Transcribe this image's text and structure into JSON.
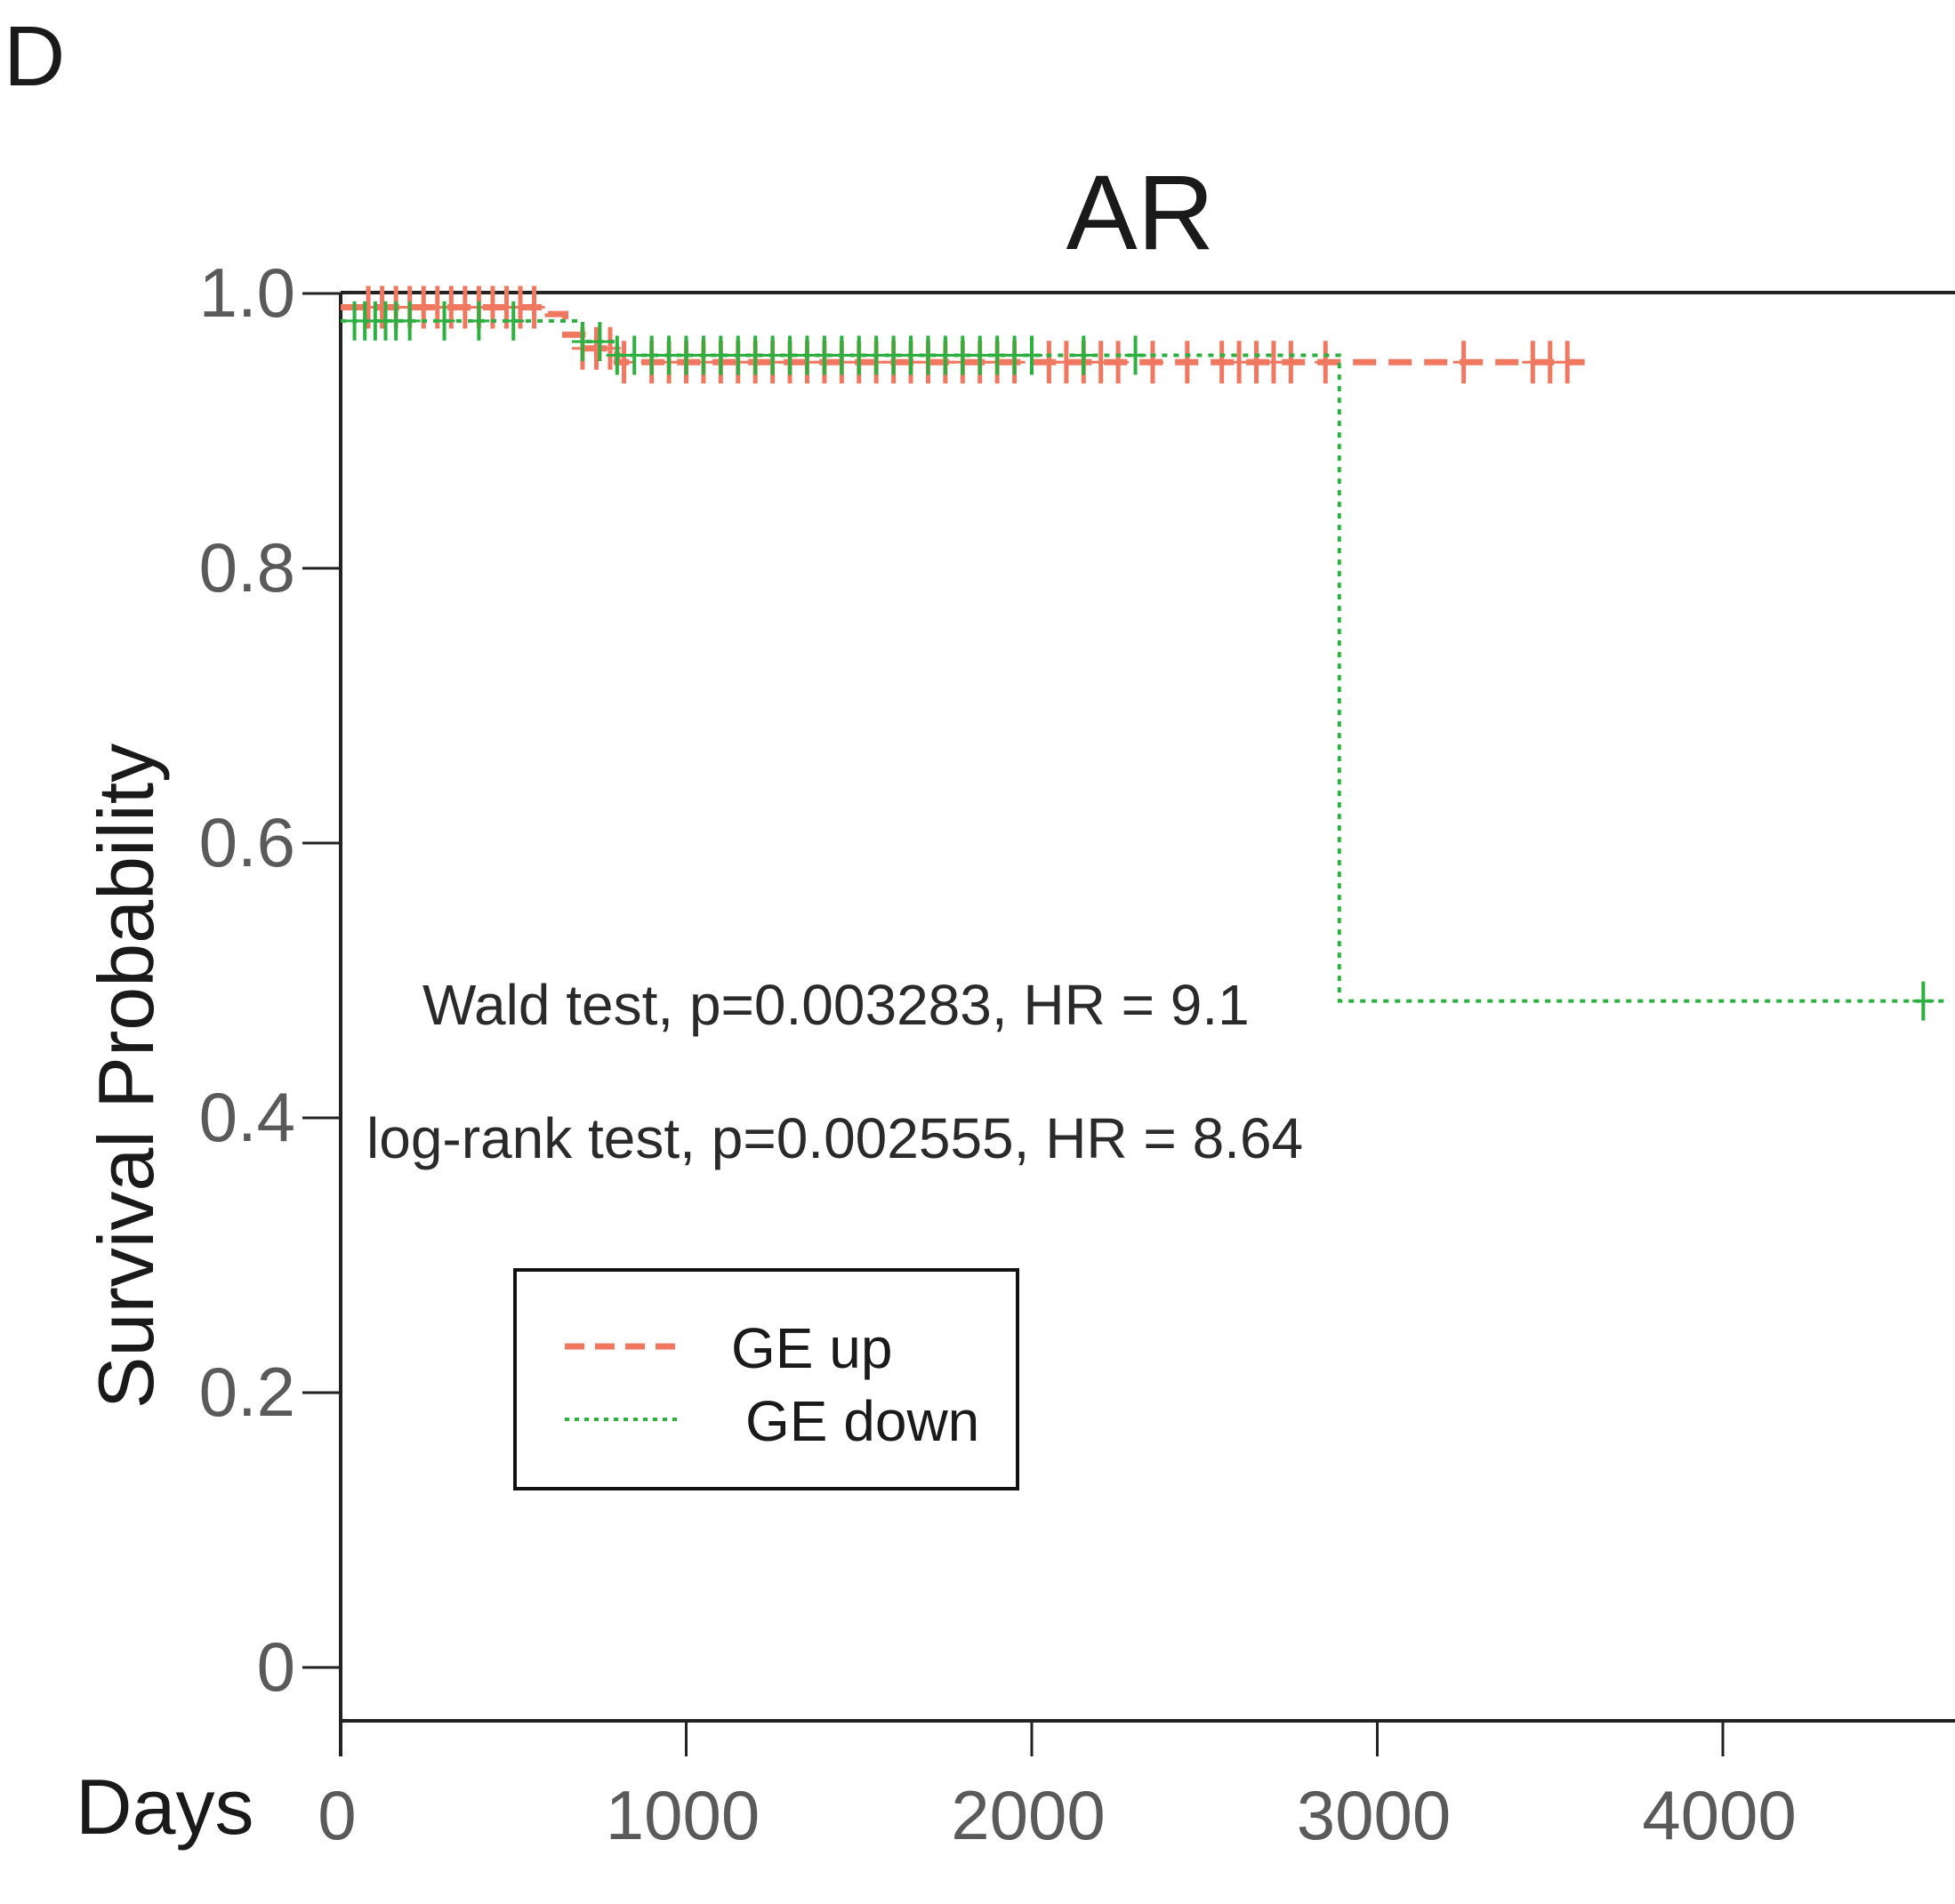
{
  "panel_letter": "D",
  "chart_data": {
    "type": "line",
    "title": "AR",
    "xlabel": "Days",
    "ylabel": "Survival Probability",
    "xlim": [
      0,
      4650
    ],
    "ylim": [
      0,
      1.0
    ],
    "x_ticks": [
      "0",
      "1000",
      "2000",
      "3000",
      "4000"
    ],
    "y_ticks": [
      "0",
      "0.2",
      "0.4",
      "0.6",
      "0.8",
      "1.0"
    ],
    "grid": false,
    "legend": "lower-left",
    "annotations": [
      "Wald test, p=0.003283, HR = 9.1",
      "log-rank test, p=0.002555, HR = 8.64"
    ],
    "series": [
      {
        "name": "GE up",
        "color": "#f07860",
        "style": "dashed",
        "steps": [
          [
            0,
            0.99
          ],
          [
            100,
            0.99
          ],
          [
            600,
            0.985
          ],
          [
            650,
            0.97
          ],
          [
            700,
            0.96
          ],
          [
            800,
            0.95
          ],
          [
            3600,
            0.95
          ]
        ],
        "censor_x": [
          80,
          120,
          160,
          200,
          240,
          280,
          320,
          360,
          400,
          440,
          480,
          520,
          560,
          700,
          740,
          780,
          820,
          900,
          950,
          1000,
          1050,
          1100,
          1150,
          1200,
          1250,
          1300,
          1350,
          1400,
          1450,
          1500,
          1550,
          1600,
          1650,
          1700,
          1750,
          1800,
          1850,
          1900,
          1950,
          2050,
          2100,
          2150,
          2200,
          2250,
          2350,
          2450,
          2550,
          2600,
          2650,
          2700,
          2750,
          2850,
          3250,
          3450,
          3500,
          3550
        ]
      },
      {
        "name": "GE down",
        "color": "#2db040",
        "style": "dotted",
        "steps": [
          [
            0,
            0.98
          ],
          [
            650,
            0.98
          ],
          [
            700,
            0.965
          ],
          [
            800,
            0.955
          ],
          [
            2890,
            0.955
          ],
          [
            2890,
            0.485
          ],
          [
            4650,
            0.485
          ]
        ],
        "censor_x": [
          40,
          70,
          100,
          130,
          160,
          200,
          300,
          400,
          500,
          700,
          750,
          800,
          850,
          900,
          950,
          1000,
          1050,
          1100,
          1150,
          1200,
          1250,
          1300,
          1350,
          1400,
          1450,
          1500,
          1550,
          1600,
          1650,
          1700,
          1750,
          1800,
          1850,
          1900,
          1950,
          2000,
          2150,
          2300,
          4580
        ]
      }
    ]
  }
}
